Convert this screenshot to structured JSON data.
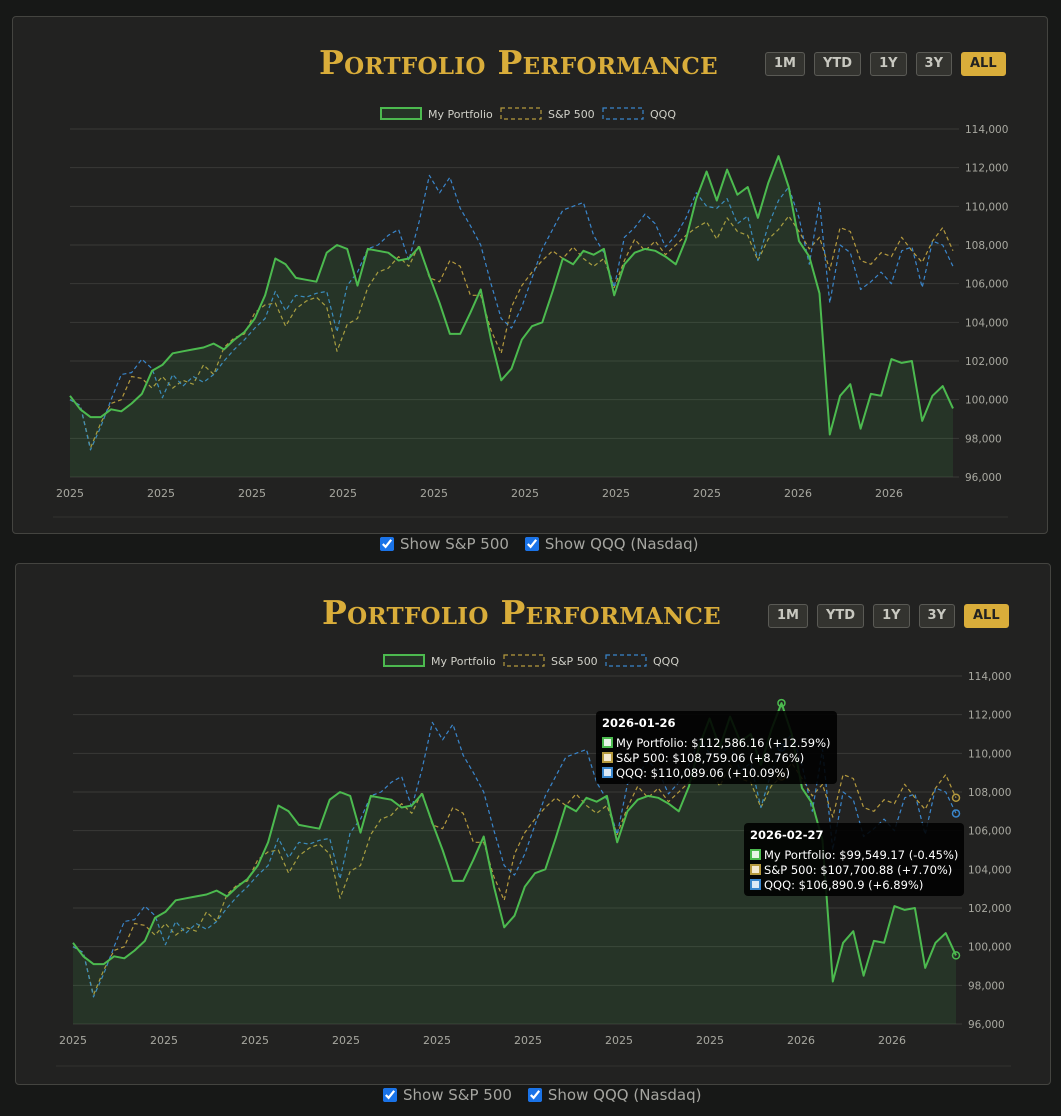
{
  "title": "Portfolio Performance",
  "range_buttons": [
    "1M",
    "YTD",
    "1Y",
    "3Y",
    "ALL"
  ],
  "active_range": "ALL",
  "toggles": {
    "sp500": "Show S&P 500",
    "qqq": "Show QQQ (Nasdaq)"
  },
  "colors": {
    "portfolio": "#4cba4f",
    "sp500": "#b59a3e",
    "qqq": "#3a86cc",
    "accent": "#d9ad3a"
  },
  "tooltips": [
    {
      "date": "2026-01-26",
      "rows": [
        {
          "series": "portfolio",
          "text": "My Portfolio: $112,586.16 (+12.59%)"
        },
        {
          "series": "sp500",
          "text": "S&P 500: $108,759.06 (+8.76%)"
        },
        {
          "series": "qqq",
          "text": "QQQ: $110,089.06 (+10.09%)"
        }
      ]
    },
    {
      "date": "2026-02-27",
      "rows": [
        {
          "series": "portfolio",
          "text": "My Portfolio: $99,549.17 (-0.45%)"
        },
        {
          "series": "sp500",
          "text": "S&P 500: $107,700.88 (+7.70%)"
        },
        {
          "series": "qqq",
          "text": "QQQ: $106,890.9 (+6.89%)"
        }
      ]
    }
  ],
  "chart_data": {
    "type": "line",
    "x_ticks": [
      "2025",
      "2025",
      "2025",
      "2025",
      "2025",
      "2025",
      "2025",
      "2025",
      "2026",
      "2026"
    ],
    "ylim": [
      96000,
      114000
    ],
    "y_ticks": [
      "96,000",
      "98,000",
      "100,000",
      "102,000",
      "104,000",
      "106,000",
      "108,000",
      "110,000",
      "112,000",
      "114,000"
    ],
    "grid": true,
    "legend_position": "top-center",
    "series": [
      {
        "name": "My Portfolio",
        "key": "portfolio",
        "values": [
          100200,
          99500,
          99100,
          99100,
          99500,
          99400,
          99800,
          100300,
          101500,
          101800,
          102400,
          102500,
          102600,
          102700,
          102900,
          102600,
          103100,
          103500,
          104200,
          105400,
          107300,
          107000,
          106300,
          106200,
          106100,
          107600,
          108000,
          107800,
          105900,
          107800,
          107700,
          107600,
          107200,
          107300,
          107900,
          106400,
          105000,
          103400,
          103400,
          104500,
          105700,
          103100,
          101000,
          101600,
          103100,
          103800,
          104000,
          105600,
          107300,
          107000,
          107700,
          107500,
          107800,
          105400,
          107000,
          107600,
          107800,
          107700,
          107400,
          107000,
          108300,
          110400,
          111800,
          110300,
          111900,
          110600,
          111000,
          109400,
          111200,
          112600,
          111000,
          108200,
          107400,
          105500,
          98200,
          100200,
          100800,
          98500,
          100300,
          100200,
          102100,
          101900,
          102000,
          98900,
          100200,
          100700,
          99549
        ],
        "stroke": "solid"
      },
      {
        "name": "S&P 500",
        "key": "sp500",
        "values": [
          100000,
          99700,
          97500,
          98800,
          99800,
          100000,
          101200,
          101100,
          100600,
          101200,
          100600,
          101000,
          100800,
          101800,
          101300,
          102700,
          103200,
          103400,
          104500,
          104900,
          105000,
          103800,
          104700,
          105100,
          105300,
          104800,
          102500,
          103900,
          104200,
          105800,
          106600,
          106800,
          107400,
          106900,
          108000,
          106300,
          106100,
          107200,
          106900,
          105400,
          105400,
          103600,
          102400,
          104800,
          105900,
          106600,
          107200,
          107700,
          107300,
          107900,
          107300,
          106900,
          107300,
          105800,
          107200,
          108300,
          107700,
          108200,
          107500,
          108000,
          108500,
          108900,
          109200,
          108300,
          109400,
          108700,
          108500,
          107200,
          108300,
          108800,
          109500,
          108700,
          107800,
          108400,
          106700,
          108900,
          108700,
          107200,
          107000,
          107600,
          107400,
          108400,
          107700,
          107100,
          108200,
          108900,
          107701
        ],
        "stroke": "dashed"
      },
      {
        "name": "QQQ",
        "key": "qqq",
        "values": [
          100000,
          99700,
          97400,
          98600,
          100000,
          101300,
          101400,
          102100,
          101600,
          100100,
          101300,
          100700,
          101200,
          100900,
          101300,
          102000,
          102600,
          103100,
          103700,
          104200,
          105600,
          104600,
          105400,
          105300,
          105500,
          105600,
          103500,
          105900,
          106600,
          107800,
          108000,
          108500,
          108800,
          107200,
          109200,
          111600,
          110700,
          111500,
          109900,
          109000,
          108000,
          106000,
          104200,
          103700,
          104800,
          106300,
          107800,
          108800,
          109800,
          110000,
          110200,
          108500,
          107600,
          105800,
          108400,
          108900,
          109600,
          109100,
          107900,
          108500,
          109400,
          110700,
          110000,
          109900,
          110400,
          109100,
          109500,
          107200,
          109000,
          110300,
          111000,
          109400,
          107000,
          110200,
          105000,
          108000,
          107600,
          105700,
          106100,
          106600,
          106000,
          107700,
          107900,
          105800,
          108200,
          108000,
          106891
        ],
        "stroke": "dashed"
      }
    ]
  }
}
